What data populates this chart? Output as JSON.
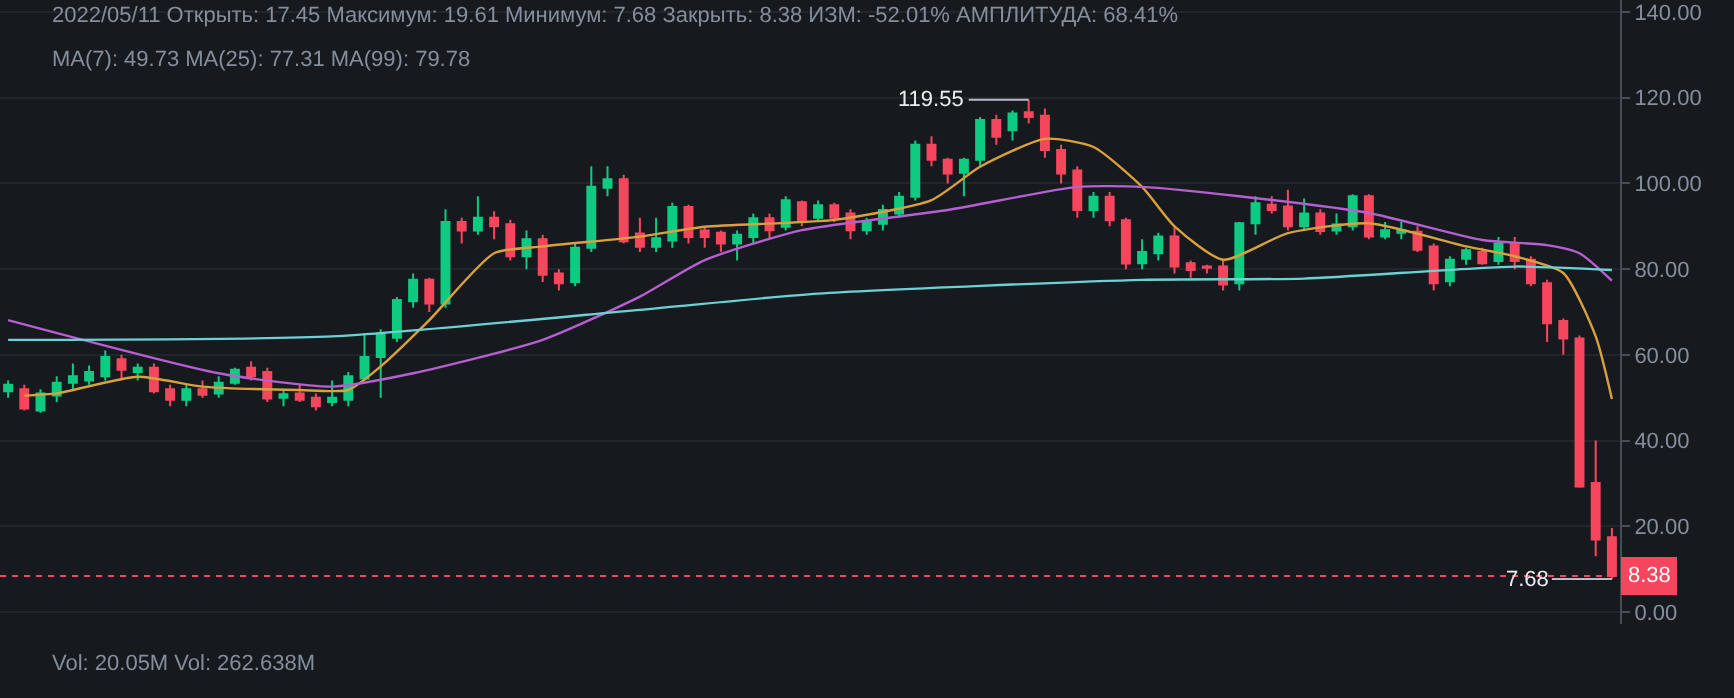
{
  "chart_data": {
    "type": "candlestick",
    "categories": [
      null,
      null,
      null,
      null,
      null,
      null,
      null,
      null,
      null,
      null,
      null,
      null,
      null,
      null,
      null,
      null,
      null,
      null,
      null,
      null,
      null,
      null,
      null,
      null,
      null,
      null,
      null,
      null,
      null,
      null,
      null,
      null,
      null,
      null,
      null,
      null,
      null,
      null,
      null,
      null,
      null,
      null,
      null,
      null,
      null,
      null,
      null,
      null,
      null,
      null,
      null,
      null,
      null,
      null,
      null,
      null,
      null,
      null,
      null,
      null,
      null,
      null,
      null,
      null,
      null,
      null,
      null,
      null,
      null,
      null,
      null,
      null,
      null,
      null,
      null,
      null,
      null,
      null,
      null,
      null,
      null,
      null,
      null,
      null,
      null,
      null,
      null,
      null,
      null,
      null,
      null,
      null,
      null,
      null,
      null,
      null,
      null,
      null,
      null,
      null
    ],
    "ohlc": [
      [
        51.5,
        54,
        50,
        53
      ],
      [
        52,
        53,
        47,
        47.5
      ],
      [
        47,
        52,
        46.5,
        51
      ],
      [
        50.5,
        55,
        49,
        53.5
      ],
      [
        53.5,
        58,
        52,
        55
      ],
      [
        54,
        57.5,
        53,
        56
      ],
      [
        55,
        61,
        54,
        59.5
      ],
      [
        59,
        60,
        54,
        56.5
      ],
      [
        56,
        58,
        54,
        57
      ],
      [
        57,
        58,
        51,
        51.5
      ],
      [
        52,
        53,
        48,
        49.5
      ],
      [
        49.5,
        53,
        48,
        52
      ],
      [
        52,
        54,
        50,
        50.7
      ],
      [
        51,
        55,
        50,
        53.5
      ],
      [
        53.5,
        57,
        53,
        56.5
      ],
      [
        57,
        58.5,
        54,
        55
      ],
      [
        56,
        57,
        49,
        49.8
      ],
      [
        50,
        52,
        48,
        50.8
      ],
      [
        51,
        53,
        49,
        49.5
      ],
      [
        50,
        51,
        47,
        48
      ],
      [
        49,
        54,
        48,
        50
      ],
      [
        49.5,
        56,
        48,
        55
      ],
      [
        54.5,
        65,
        54,
        59.5
      ],
      [
        59.5,
        66,
        50,
        65
      ],
      [
        64,
        73.5,
        63,
        72.8
      ],
      [
        72.5,
        79,
        71,
        77.5
      ],
      [
        77.5,
        78,
        70,
        72
      ],
      [
        72,
        94,
        71,
        91
      ],
      [
        91,
        92,
        86,
        89
      ],
      [
        89,
        97,
        88,
        92
      ],
      [
        92,
        93.5,
        87,
        90
      ],
      [
        90.5,
        91.5,
        82,
        83
      ],
      [
        83,
        89,
        80,
        87
      ],
      [
        87,
        88,
        77,
        78.7
      ],
      [
        79,
        80,
        75,
        76.7
      ],
      [
        77,
        86,
        76,
        85
      ],
      [
        85,
        104,
        84,
        99.2
      ],
      [
        99,
        104,
        97,
        101
      ],
      [
        101,
        102,
        86,
        86.5
      ],
      [
        88.3,
        92,
        84,
        85.2
      ],
      [
        85.2,
        92,
        84,
        87.2
      ],
      [
        86.7,
        95.5,
        85,
        94.5
      ],
      [
        94.5,
        95,
        86,
        87.5
      ],
      [
        89,
        90,
        85,
        87.5
      ],
      [
        88.5,
        89,
        84,
        86
      ],
      [
        86,
        89,
        82,
        88
      ],
      [
        87.5,
        93,
        86,
        91.9
      ],
      [
        91.9,
        93,
        87,
        89.1
      ],
      [
        89.9,
        97,
        89,
        96.1
      ],
      [
        95.6,
        96,
        90,
        91.4
      ],
      [
        92,
        96,
        91,
        94.9
      ],
      [
        94.9,
        95.5,
        91,
        92
      ],
      [
        93,
        94,
        87,
        89.1
      ],
      [
        89.1,
        92,
        88,
        91.1
      ],
      [
        90.6,
        95,
        89,
        93.8
      ],
      [
        93,
        98,
        92,
        96.9
      ],
      [
        96.9,
        110,
        96,
        109
      ],
      [
        109,
        111,
        104,
        105.5
      ],
      [
        105.5,
        106,
        100,
        102.3
      ],
      [
        102.5,
        106,
        97,
        105.5
      ],
      [
        105.5,
        115.5,
        104,
        114.8
      ],
      [
        114.8,
        116,
        109,
        110.9
      ],
      [
        112.4,
        117,
        110,
        116.3
      ],
      [
        116.6,
        119.55,
        114,
        115.5
      ],
      [
        115.8,
        117.5,
        106,
        107.8
      ],
      [
        107.8,
        109,
        100,
        102.3
      ],
      [
        103,
        104,
        92,
        93.8
      ],
      [
        93.8,
        98,
        92,
        96.9
      ],
      [
        96.9,
        98,
        90,
        91.4
      ],
      [
        91.4,
        92,
        80,
        81.3
      ],
      [
        81.4,
        87,
        80,
        84
      ],
      [
        83.7,
        88.5,
        82,
        87.6
      ],
      [
        87.6,
        90,
        79,
        80.6
      ],
      [
        81.4,
        82,
        78,
        79.8
      ],
      [
        80.6,
        81,
        79,
        80.3
      ],
      [
        80.6,
        82,
        75,
        76.4
      ],
      [
        76.7,
        91,
        75,
        90.7
      ],
      [
        90.7,
        97,
        88,
        95.4
      ],
      [
        95,
        97,
        93,
        93.8
      ],
      [
        94.6,
        98.5,
        89,
        90
      ],
      [
        90,
        96.5,
        89,
        93
      ],
      [
        93,
        94,
        88,
        88.9
      ],
      [
        89,
        93,
        88,
        90.4
      ],
      [
        90,
        97.5,
        89,
        97
      ],
      [
        97,
        97.5,
        87,
        87.6
      ],
      [
        87.6,
        91,
        87,
        89.1
      ],
      [
        88.5,
        91,
        87,
        89.1
      ],
      [
        88.7,
        90,
        84,
        84.5
      ],
      [
        85.3,
        86,
        75,
        76.7
      ],
      [
        77.2,
        83,
        76,
        82.2
      ],
      [
        82.4,
        85,
        81,
        84.4
      ],
      [
        84,
        85,
        81,
        81.4
      ],
      [
        81.9,
        87.5,
        81,
        86
      ],
      [
        86,
        87.5,
        80,
        81.9
      ],
      [
        82.2,
        83,
        76,
        76.7
      ],
      [
        76.7,
        77.5,
        63,
        67.4
      ],
      [
        67.9,
        68.5,
        60,
        63.8
      ],
      [
        63.8,
        64.5,
        29,
        29.3
      ],
      [
        30.1,
        40,
        13,
        16.9
      ],
      [
        17.45,
        19.61,
        7.68,
        8.38
      ]
    ],
    "colors": [
      "#0ecb81",
      "#f6465d",
      "#0ecb81",
      "#0ecb81",
      "#0ecb81",
      "#0ecb81",
      "#0ecb81",
      "#f6465d",
      "#0ecb81",
      "#f6465d",
      "#f6465d",
      "#0ecb81",
      "#f6465d",
      "#0ecb81",
      "#0ecb81",
      "#f6465d",
      "#f6465d",
      "#0ecb81",
      "#f6465d",
      "#f6465d",
      "#0ecb81",
      "#0ecb81",
      "#0ecb81",
      "#0ecb81",
      "#0ecb81",
      "#0ecb81",
      "#f6465d",
      "#0ecb81",
      "#f6465d",
      "#0ecb81",
      "#f6465d",
      "#f6465d",
      "#0ecb81",
      "#f6465d",
      "#f6465d",
      "#0ecb81",
      "#0ecb81",
      "#0ecb81",
      "#f6465d",
      "#f6465d",
      "#0ecb81",
      "#0ecb81",
      "#f6465d",
      "#f6465d",
      "#f6465d",
      "#0ecb81",
      "#0ecb81",
      "#f6465d",
      "#0ecb81",
      "#f6465d",
      "#0ecb81",
      "#f6465d",
      "#f6465d",
      "#0ecb81",
      "#0ecb81",
      "#0ecb81",
      "#0ecb81",
      "#f6465d",
      "#f6465d",
      "#0ecb81",
      "#0ecb81",
      "#f6465d",
      "#0ecb81",
      "#f6465d",
      "#f6465d",
      "#f6465d",
      "#f6465d",
      "#0ecb81",
      "#f6465d",
      "#f6465d",
      "#0ecb81",
      "#0ecb81",
      "#f6465d",
      "#f6465d",
      "#f6465d",
      "#f6465d",
      "#0ecb81",
      "#0ecb81",
      "#f6465d",
      "#f6465d",
      "#0ecb81",
      "#f6465d",
      "#0ecb81",
      "#0ecb81",
      "#f6465d",
      "#0ecb81",
      "#0ecb81",
      "#f6465d",
      "#f6465d",
      "#0ecb81",
      "#0ecb81",
      "#f6465d",
      "#0ecb81",
      "#f6465d",
      "#f6465d",
      "#f6465d",
      "#f6465d",
      "#f6465d",
      "#f6465d",
      "#f6465d"
    ],
    "series": [
      {
        "type": "line",
        "color": "#d9a13b",
        "values": [
          null,
          50.5,
          null,
          51,
          null,
          null,
          null,
          null,
          54.9,
          null,
          null,
          null,
          52.6,
          null,
          null,
          null,
          null,
          null,
          51.8,
          null,
          null,
          51.8,
          null,
          57.3,
          null,
          null,
          68.1,
          null,
          null,
          null,
          83.7,
          null,
          null,
          85.3,
          null,
          null,
          null,
          null,
          null,
          87.6,
          null,
          null,
          null,
          89.9,
          null,
          null,
          null,
          null,
          null,
          null,
          null,
          91.5,
          null,
          null,
          null,
          null,
          null,
          96.1,
          null,
          null,
          103.9,
          null,
          null,
          null,
          110.4,
          null,
          null,
          108.5,
          null,
          null,
          99.2,
          null,
          90,
          null,
          null,
          82.2,
          null,
          null,
          null,
          88.4,
          null,
          null,
          null,
          null,
          90.7,
          null,
          null,
          null,
          null,
          null,
          85.3,
          null,
          null,
          83,
          null,
          null,
          79.1,
          null,
          64.3,
          49.7
        ]
      },
      {
        "type": "line",
        "color": "#b65fd0",
        "values": [
          68.1,
          null,
          null,
          null,
          null,
          null,
          null,
          null,
          null,
          null,
          null,
          null,
          null,
          55.7,
          null,
          null,
          null,
          null,
          null,
          null,
          52.6,
          null,
          null,
          null,
          null,
          55.7,
          null,
          null,
          null,
          null,
          null,
          null,
          null,
          63.5,
          null,
          null,
          null,
          null,
          null,
          73.6,
          null,
          null,
          null,
          82.1,
          null,
          null,
          null,
          null,
          null,
          89.1,
          null,
          null,
          null,
          null,
          null,
          null,
          null,
          null,
          93.8,
          null,
          null,
          null,
          null,
          null,
          null,
          null,
          99.2,
          null,
          null,
          null,
          99.2,
          null,
          null,
          null,
          null,
          null,
          97,
          null,
          null,
          null,
          null,
          null,
          null,
          null,
          93.1,
          null,
          null,
          null,
          null,
          null,
          null,
          86.8,
          null,
          null,
          null,
          85.6,
          null,
          83.7,
          null,
          77.3
        ]
      },
      {
        "type": "line",
        "color": "#6ad2d4",
        "values": [
          63.5,
          null,
          null,
          null,
          null,
          null,
          null,
          null,
          null,
          null,
          null,
          null,
          null,
          null,
          null,
          null,
          null,
          null,
          null,
          null,
          64.3,
          null,
          null,
          null,
          null,
          null,
          null,
          null,
          null,
          null,
          null,
          null,
          null,
          null,
          null,
          null,
          null,
          null,
          null,
          70.5,
          null,
          null,
          null,
          null,
          null,
          null,
          null,
          null,
          null,
          null,
          74.3,
          null,
          null,
          null,
          null,
          null,
          null,
          null,
          null,
          null,
          null,
          null,
          null,
          null,
          null,
          null,
          null,
          null,
          null,
          null,
          77.5,
          null,
          null,
          null,
          null,
          null,
          null,
          null,
          null,
          null,
          77.8,
          null,
          null,
          null,
          null,
          null,
          null,
          null,
          null,
          null,
          null,
          null,
          null,
          80.6,
          null,
          null,
          null,
          null,
          null,
          79.8
        ]
      }
    ],
    "ylim": [
      -2.8,
      142.8
    ],
    "yticks": [
      {
        "value": 0,
        "label": "0.00"
      },
      {
        "value": 20,
        "label": "20.00"
      },
      {
        "value": 40,
        "label": "40.00"
      },
      {
        "value": 60,
        "label": "60.00"
      },
      {
        "value": 80,
        "label": "80.00"
      },
      {
        "value": 100,
        "label": "100.00"
      },
      {
        "value": 120,
        "label": "120.00"
      },
      {
        "value": 140,
        "label": "140.00"
      }
    ],
    "tick_labels": "y",
    "grid": "y",
    "ref_lines": [
      {
        "axis": "y",
        "value": 8.38,
        "label": "8.38",
        "color": "#f6465d",
        "line_style": "dotted"
      }
    ],
    "annotations": [
      "2022/05/11 Открыть: 17.45 Максимум: 19.61 Минимум: 7.68 Закрыть: 8.38 ИЗМ: -52.01% АМПЛИТУДА: 68.41%",
      "MA(7): 49.73 MA(25): 77.31 MA(99): 79.78",
      "119.55",
      "7.68",
      "Vol: 20.05M Vol: 262.638M"
    ]
  }
}
